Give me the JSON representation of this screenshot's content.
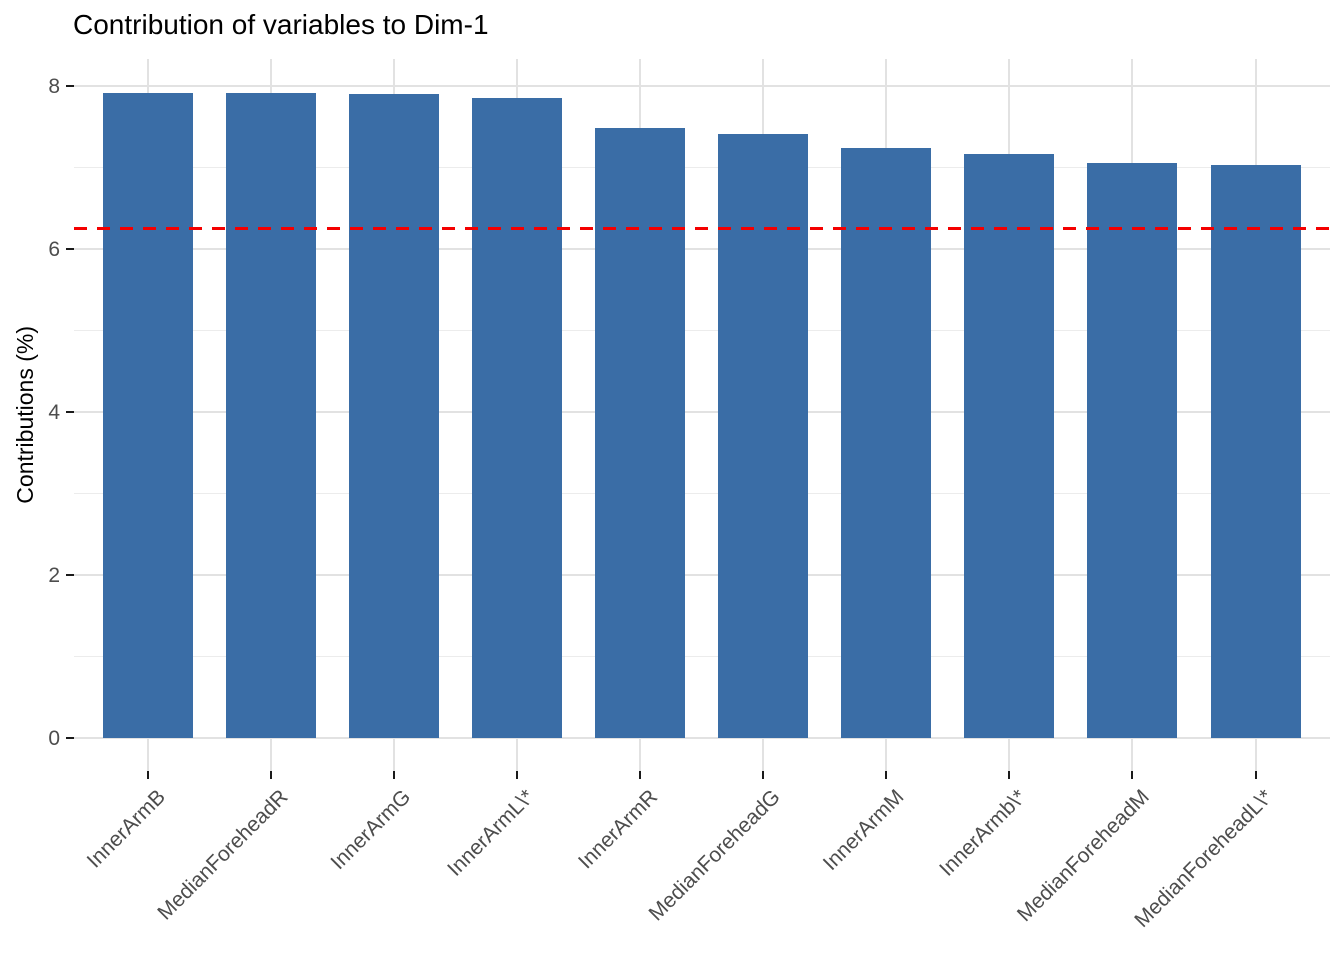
{
  "chart_data": {
    "type": "bar",
    "title": "Contribution of variables to Dim-1",
    "xlabel": "",
    "ylabel": "Contributions (%)",
    "categories": [
      "InnerArmB",
      "MedianForeheadR",
      "InnerArmG",
      "InnerArmL\\*",
      "InnerArmR",
      "MedianForeheadG",
      "InnerArmM",
      "InnerArmb\\*",
      "MedianForeheadM",
      "MedianForeheadL\\*"
    ],
    "values": [
      7.92,
      7.91,
      7.9,
      7.85,
      7.48,
      7.41,
      7.24,
      7.17,
      7.05,
      7.03
    ],
    "reference_line": {
      "value": 6.25,
      "style": "dashed",
      "color": "#f40000"
    },
    "y_ticks": [
      0,
      2,
      4,
      6,
      8
    ],
    "y_minor_ticks": [
      1,
      3,
      5,
      7
    ],
    "ylim": [
      -0.4,
      8.35
    ],
    "bar_color": "#3a6da6",
    "grid": true,
    "legend": "none",
    "x_label_rotation": 45
  }
}
